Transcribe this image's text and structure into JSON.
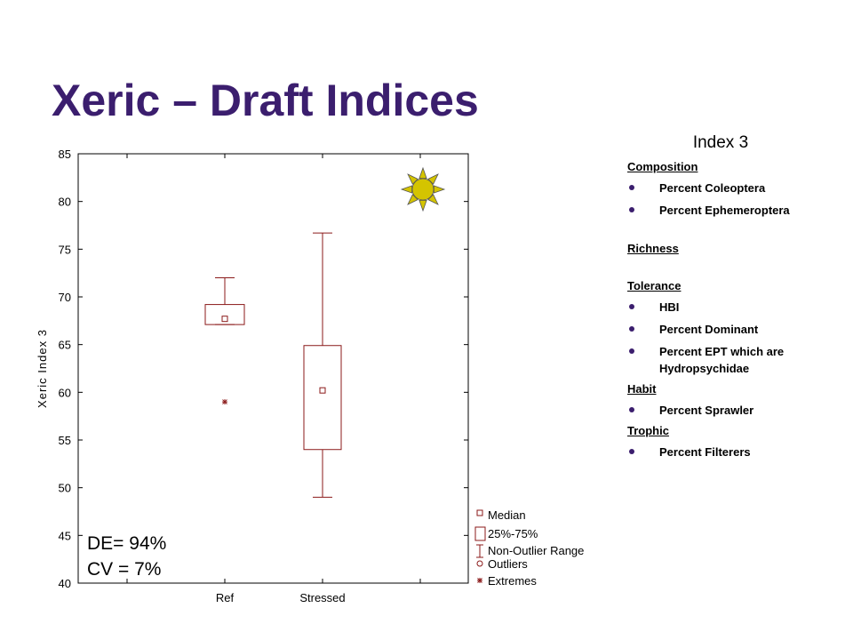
{
  "title": "Xeric – Draft Indices",
  "colors": {
    "title": "#3b1e6e",
    "box": "#8b1a1a",
    "sun": "#d4c400",
    "bullet": "#3b1e6e"
  },
  "chart_data": {
    "type": "boxplot",
    "ylabel": "Xeric Index 3",
    "ylim": [
      40,
      85
    ],
    "yticks": [
      40,
      45,
      50,
      55,
      60,
      65,
      70,
      75,
      80,
      85
    ],
    "categories": [
      "Ref",
      "Stressed"
    ],
    "boxes": [
      {
        "category": "Ref",
        "median": 67.7,
        "q1": 67.1,
        "q3": 69.2,
        "whisker_low": 67.1,
        "whisker_high": 72.0,
        "extremes": [
          59.0
        ]
      },
      {
        "category": "Stressed",
        "median": 60.2,
        "q1": 54.0,
        "q3": 64.9,
        "whisker_low": 49.0,
        "whisker_high": 76.7,
        "extremes": []
      }
    ],
    "legend": [
      "Median",
      "25%-75%",
      "Non-Outlier Range",
      "Outliers",
      "Extremes"
    ],
    "legend_position": "bottom-right outside",
    "icon": "sun-icon"
  },
  "stats": {
    "de": "DE= 94%",
    "cv": "CV = 7%"
  },
  "panel": {
    "title": "Index 3",
    "sections": [
      {
        "heading": "Composition",
        "items": [
          "Percent  Coleoptera",
          "Percent  Ephemeroptera"
        ]
      },
      {
        "heading": "Richness",
        "items": []
      },
      {
        "heading": "Tolerance",
        "items": [
          "HBI",
          "Percent  Dominant",
          "Percent  EPT which are Hydropsychidae"
        ]
      },
      {
        "heading": "Habit",
        "items": [
          "Percent  Sprawler"
        ]
      },
      {
        "heading": "Trophic",
        "items": [
          "Percent  Filterers"
        ]
      }
    ]
  }
}
